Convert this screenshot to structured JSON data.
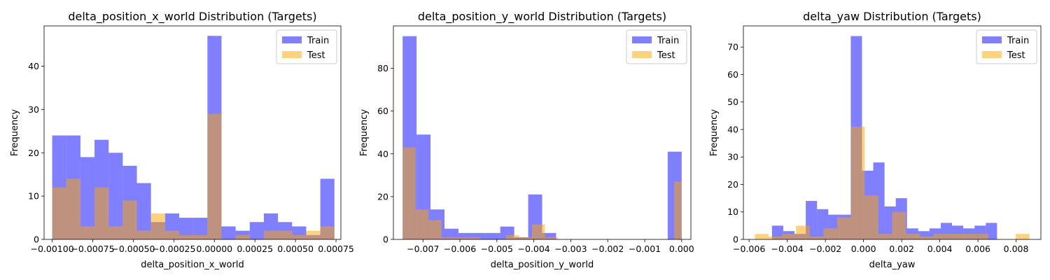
{
  "colors": {
    "train": "#0000ff",
    "test": "#ffa500",
    "train_alpha": 0.5,
    "test_alpha": 0.5
  },
  "chart_data": [
    {
      "type": "histogram",
      "title": "delta_position_x_world Distribution (Targets)",
      "xlabel": "delta_position_x_world",
      "ylabel": "Frequency",
      "xlim": [
        -0.00105,
        0.00078
      ],
      "ylim": [
        0,
        49.3
      ],
      "xticks": [
        -0.001,
        -0.00075,
        -0.0005,
        -0.00025,
        0.0,
        0.00025,
        0.0005,
        0.00075
      ],
      "xtick_labels": [
        "−0.00100",
        "−0.00075",
        "−0.00050",
        "−0.00025",
        "0.00000",
        "0.00025",
        "0.00050",
        "0.00075"
      ],
      "yticks": [
        0,
        10,
        20,
        30,
        40
      ],
      "ytick_labels": [
        "0",
        "10",
        "20",
        "30",
        "40"
      ],
      "legend": {
        "position": "top-right",
        "entries": [
          "Train",
          "Test"
        ]
      },
      "series": [
        {
          "name": "Train",
          "bin_edges": [
            -0.001,
            -0.000913,
            -0.000826,
            -0.000739,
            -0.000652,
            -0.000565,
            -0.000478,
            -0.000391,
            -0.000304,
            -0.000217,
            -0.00013,
            -4.3e-05,
            4.4e-05,
            0.000131,
            0.000218,
            0.000305,
            0.000392,
            0.000479,
            0.000566,
            0.000653,
            0.00074
          ],
          "counts": [
            24,
            24,
            19,
            23,
            20,
            17,
            13,
            4,
            6,
            5,
            5,
            47,
            3,
            2,
            4,
            6,
            4,
            3,
            1,
            14
          ]
        },
        {
          "name": "Test",
          "bin_edges": [
            -0.001,
            -0.000913,
            -0.000826,
            -0.000739,
            -0.000652,
            -0.000565,
            -0.000478,
            -0.000391,
            -0.000304,
            -0.000217,
            -0.00013,
            -4.3e-05,
            4.4e-05,
            0.000131,
            0.000218,
            0.000305,
            0.000392,
            0.000479,
            0.000566,
            0.000653,
            0.00074
          ],
          "counts": [
            12,
            14,
            3,
            12,
            3,
            9,
            2,
            6,
            2,
            1,
            1,
            29,
            0,
            1,
            0,
            2,
            2,
            1,
            2,
            3
          ]
        }
      ]
    },
    {
      "type": "histogram",
      "title": "delta_position_y_world Distribution (Targets)",
      "xlabel": "delta_position_y_world",
      "ylabel": "Frequency",
      "xlim": [
        -0.0078,
        0.00025
      ],
      "ylim": [
        0,
        99.8
      ],
      "xticks": [
        -0.007,
        -0.006,
        -0.005,
        -0.004,
        -0.003,
        -0.002,
        -0.001,
        0.0
      ],
      "xtick_labels": [
        "−0.007",
        "−0.006",
        "−0.005",
        "−0.004",
        "−0.003",
        "−0.002",
        "−0.001",
        "0.000"
      ],
      "yticks": [
        0,
        20,
        40,
        60,
        80
      ],
      "ytick_labels": [
        "0",
        "20",
        "40",
        "60",
        "80"
      ],
      "legend": {
        "position": "top-right",
        "entries": [
          "Train",
          "Test"
        ]
      },
      "series": [
        {
          "name": "Train",
          "bin_edges": [
            -0.00755,
            -0.0071725,
            -0.006795,
            -0.0064175,
            -0.00604,
            -0.0056625,
            -0.005285,
            -0.0049075,
            -0.00453,
            -0.0041525,
            -0.003775,
            -0.0033975,
            -0.00302,
            -0.0026425,
            -0.002265,
            -0.0018875,
            -0.00151,
            -0.0011325,
            -0.000755,
            -0.0003775,
            0.0
          ],
          "counts": [
            95,
            49,
            14,
            5,
            3,
            3,
            3,
            6,
            1,
            21,
            3,
            0,
            0,
            0,
            0,
            0,
            0,
            0,
            0,
            41
          ]
        },
        {
          "name": "Test",
          "bin_edges": [
            -0.00755,
            -0.0072,
            -0.00685,
            -0.0065,
            -0.00615,
            -0.0058,
            -0.00545,
            -0.0051,
            -0.00475,
            -0.0044,
            -0.00405,
            -0.0037,
            -0.00335,
            -0.003,
            -0.00265,
            -0.0023,
            -0.00195,
            -0.0016,
            -0.00125,
            -0.0009,
            -0.00055,
            -0.0002,
            0.0
          ],
          "counts": [
            43,
            14,
            9,
            1,
            1,
            1,
            0,
            0,
            2,
            1,
            7,
            1,
            0,
            0,
            0,
            0,
            0,
            0,
            0,
            0,
            0,
            27
          ]
        }
      ]
    },
    {
      "type": "histogram",
      "title": "delta_yaw Distribution (Targets)",
      "xlabel": "delta_yaw",
      "ylabel": "Frequency",
      "xlim": [
        -0.0063,
        0.0093
      ],
      "ylim": [
        0,
        77.7
      ],
      "xticks": [
        -0.006,
        -0.004,
        -0.002,
        0.0,
        0.002,
        0.004,
        0.006,
        0.008
      ],
      "xtick_labels": [
        "−0.006",
        "−0.004",
        "−0.002",
        "0.000",
        "0.002",
        "0.004",
        "0.006",
        "0.008"
      ],
      "yticks": [
        0,
        10,
        20,
        30,
        40,
        50,
        60,
        70
      ],
      "ytick_labels": [
        "0",
        "10",
        "20",
        "30",
        "40",
        "50",
        "60",
        "70"
      ],
      "legend": {
        "position": "top-right",
        "entries": [
          "Train",
          "Test"
        ]
      },
      "series": [
        {
          "name": "Train",
          "bin_edges": [
            -0.0048,
            -0.00421,
            -0.00362,
            -0.00303,
            -0.00244,
            -0.00185,
            -0.00126,
            -0.00067,
            -8e-05,
            0.00051,
            0.0011,
            0.00169,
            0.00228,
            0.00287,
            0.00346,
            0.00405,
            0.00464,
            0.00523,
            0.00582,
            0.00641,
            0.007
          ],
          "counts": [
            5,
            3,
            2,
            14,
            11,
            9,
            9,
            74,
            25,
            28,
            12,
            15,
            4,
            3,
            4,
            6,
            5,
            4,
            5,
            6
          ]
        },
        {
          "name": "Test",
          "bin_edges": [
            -0.0057,
            -0.00498,
            -0.00426,
            -0.00354,
            -0.00282,
            -0.0021,
            -0.00138,
            -0.00066,
            6e-05,
            0.00078,
            0.0015,
            0.00222,
            0.00294,
            0.00366,
            0.00438,
            0.0051,
            0.00582,
            0.00654,
            0.00726,
            0.00798,
            0.0087
          ],
          "counts": [
            2,
            1,
            2,
            5,
            1,
            4,
            8,
            41,
            16,
            2,
            10,
            2,
            1,
            2,
            2,
            2,
            2,
            0,
            0,
            2
          ]
        }
      ]
    }
  ]
}
